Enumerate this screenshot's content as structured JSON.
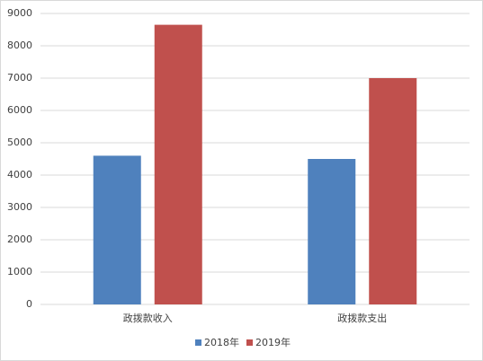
{
  "chart_data": {
    "type": "bar",
    "categories": [
      "政拨款收入",
      "政拨款支出"
    ],
    "series": [
      {
        "name": "2018年",
        "color": "#4f81bd",
        "values": [
          4600,
          4500
        ]
      },
      {
        "name": "2019年",
        "color": "#c0504d",
        "values": [
          8650,
          7000
        ]
      }
    ],
    "ylim": [
      0,
      9000
    ],
    "yticks": [
      0,
      1000,
      2000,
      3000,
      4000,
      5000,
      6000,
      7000,
      8000,
      9000
    ],
    "grid": true,
    "legend": "bottom"
  }
}
